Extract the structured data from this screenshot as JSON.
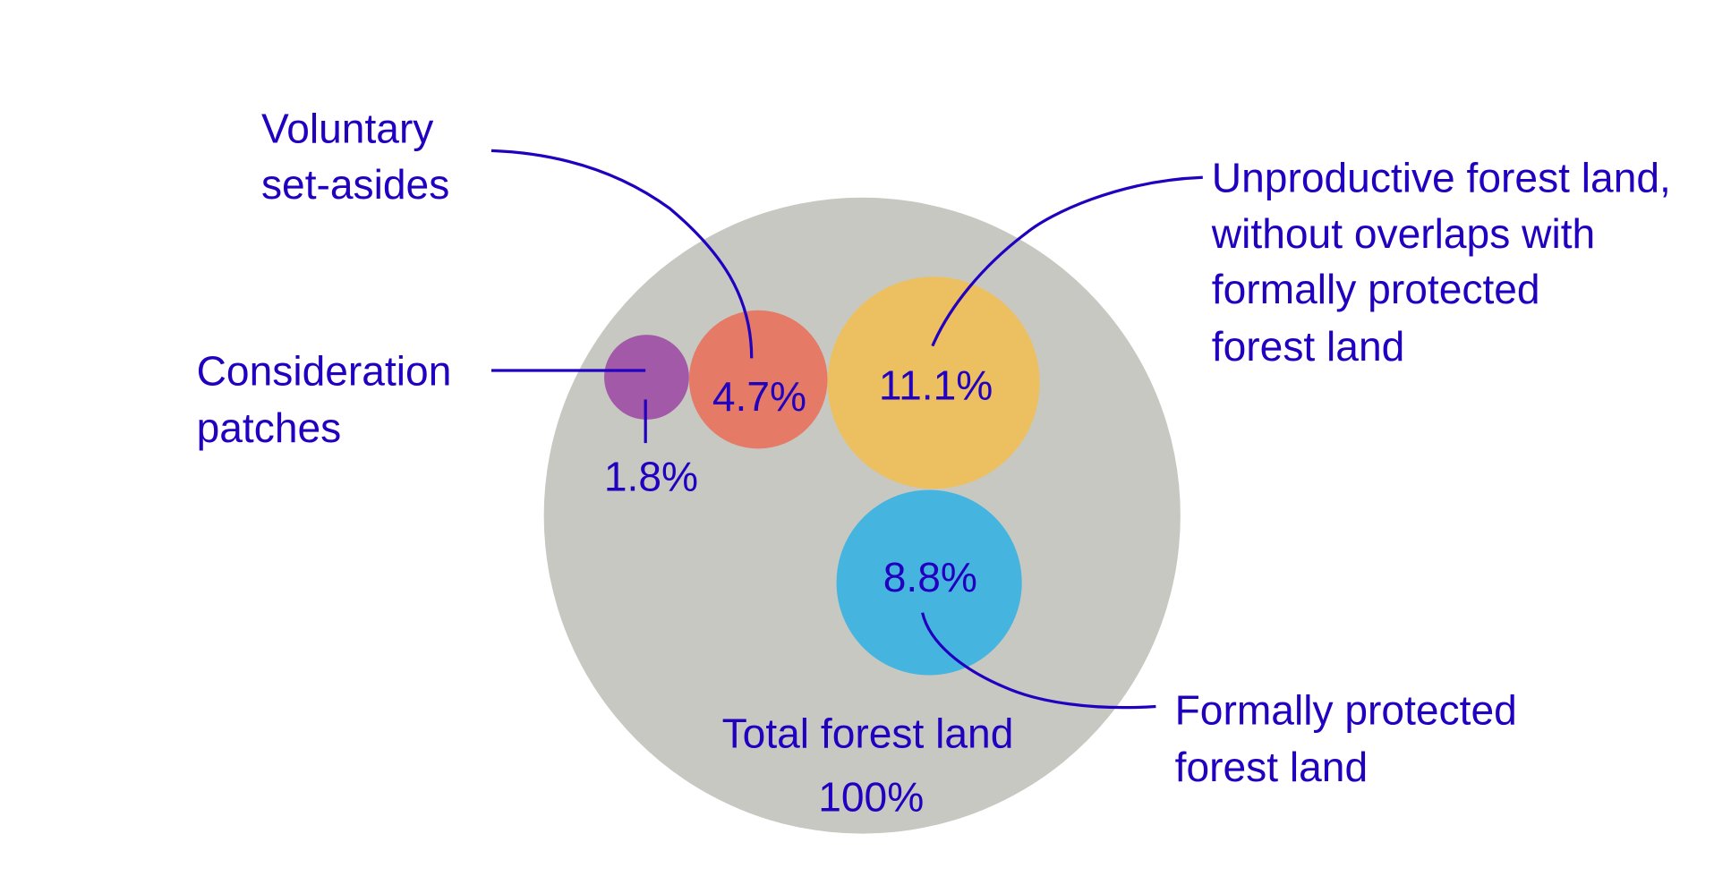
{
  "chart_data": {
    "type": "bubble",
    "title": "",
    "total": {
      "label_lines": [
        "Total forest land",
        "100%"
      ],
      "value": 100,
      "color": "#c7c8c2"
    },
    "series": [
      {
        "name_lines": [
          "Consideration",
          "patches"
        ],
        "value": 1.8,
        "value_label": "1.8%",
        "color": "#a259a8"
      },
      {
        "name_lines": [
          "Voluntary",
          "set-asides"
        ],
        "value": 4.7,
        "value_label": "4.7%",
        "color": "#e57b66"
      },
      {
        "name_lines": [
          "Unproductive forest land,",
          "without overlaps with",
          "formally protected",
          "forest land"
        ],
        "value": 11.1,
        "value_label": "11.1%",
        "color": "#ecc060"
      },
      {
        "name_lines": [
          "Formally protected",
          "forest land"
        ],
        "value": 8.8,
        "value_label": "8.8%",
        "color": "#45b5df"
      }
    ],
    "text_color": "#2200c0"
  }
}
